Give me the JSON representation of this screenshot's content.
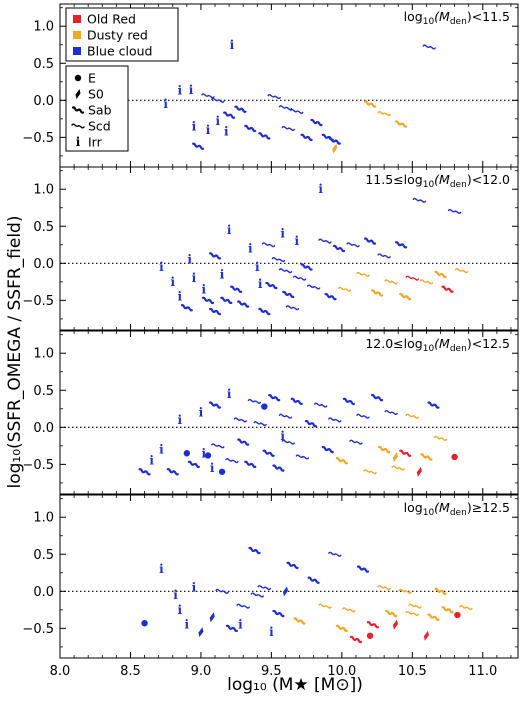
{
  "chart_data": {
    "type": "scatter",
    "xlabel": "log₁₀ (M★ [M⊙])",
    "ylabel": "log₁₀(SSFR_OMEGA / SSFR_field)",
    "xlim": [
      8.0,
      11.25
    ],
    "ylim": [
      -0.9,
      1.3
    ],
    "x_ticks": [
      "8.0",
      "8.5",
      "9.0",
      "9.5",
      "10.0",
      "10.5",
      "11.0"
    ],
    "x_tick_values": [
      8.0,
      8.5,
      9.0,
      9.5,
      10.0,
      10.5,
      11.0
    ],
    "y_ticks": [
      "−0.5",
      "0.0",
      "0.5",
      "1.0"
    ],
    "y_tick_values": [
      -0.5,
      0.0,
      0.5,
      1.0
    ],
    "reference_line": 0.0,
    "legend_colors": [
      {
        "label": "Old Red",
        "color": "#e8202a"
      },
      {
        "label": "Dusty red",
        "color": "#f5a623"
      },
      {
        "label": "Blue cloud",
        "color": "#1f2fcf"
      }
    ],
    "legend_morph": [
      {
        "label": "E",
        "code": "E"
      },
      {
        "label": "S0",
        "code": "S0"
      },
      {
        "label": "Sab",
        "code": "Sab"
      },
      {
        "label": "Scd",
        "code": "Scd"
      },
      {
        "label": "Irr",
        "code": "Irr"
      }
    ],
    "panels": [
      {
        "label_pre": "log",
        "label_sub": "10",
        "label_mid": "(M",
        "label_msub": "den",
        "label_post": ")<11.5",
        "points": [
          [
            8.85,
            0.13,
            "blue",
            "Irr"
          ],
          [
            8.93,
            0.14,
            "blue",
            "Irr"
          ],
          [
            8.75,
            -0.05,
            "blue",
            "Irr"
          ],
          [
            9.22,
            0.75,
            "blue",
            "Irr"
          ],
          [
            9.05,
            0.06,
            "blue",
            "Scd"
          ],
          [
            9.12,
            0.0,
            "blue",
            "Scd"
          ],
          [
            8.95,
            -0.35,
            "blue",
            "Irr"
          ],
          [
            9.05,
            -0.4,
            "blue",
            "Irr"
          ],
          [
            9.12,
            -0.28,
            "blue",
            "Irr"
          ],
          [
            9.18,
            -0.42,
            "blue",
            "Irr"
          ],
          [
            8.98,
            -0.62,
            "blue",
            "Sab"
          ],
          [
            9.2,
            -0.2,
            "blue",
            "Sab"
          ],
          [
            9.28,
            -0.12,
            "blue",
            "Sab"
          ],
          [
            9.35,
            -0.38,
            "blue",
            "Sab"
          ],
          [
            9.45,
            -0.48,
            "blue",
            "Sab"
          ],
          [
            9.52,
            0.05,
            "blue",
            "Scd"
          ],
          [
            9.6,
            -0.1,
            "blue",
            "Scd"
          ],
          [
            9.68,
            -0.15,
            "blue",
            "Scd"
          ],
          [
            9.62,
            -0.38,
            "blue",
            "Scd"
          ],
          [
            9.75,
            -0.5,
            "blue",
            "Sab"
          ],
          [
            9.82,
            -0.3,
            "blue",
            "Sab"
          ],
          [
            9.9,
            -0.5,
            "blue",
            "Sab"
          ],
          [
            9.95,
            -0.55,
            "blue",
            "Sab"
          ],
          [
            10.2,
            -0.05,
            "orange",
            "Sab"
          ],
          [
            10.3,
            -0.18,
            "orange",
            "Scd"
          ],
          [
            10.42,
            -0.32,
            "orange",
            "Sab"
          ],
          [
            9.95,
            -0.65,
            "orange",
            "S0"
          ],
          [
            10.62,
            0.72,
            "blue",
            "Scd"
          ]
        ]
      },
      {
        "label_pre": "11.5≤log",
        "label_sub": "10",
        "label_mid": "(M",
        "label_msub": "den",
        "label_post": ")<12.0",
        "points": [
          [
            8.72,
            -0.05,
            "blue",
            "Irr"
          ],
          [
            8.8,
            -0.25,
            "blue",
            "Irr"
          ],
          [
            8.85,
            -0.45,
            "blue",
            "Irr"
          ],
          [
            8.92,
            0.05,
            "blue",
            "Irr"
          ],
          [
            8.95,
            -0.2,
            "blue",
            "Irr"
          ],
          [
            9.02,
            -0.35,
            "blue",
            "Irr"
          ],
          [
            9.05,
            -0.5,
            "blue",
            "Sab"
          ],
          [
            9.1,
            0.1,
            "blue",
            "Sab"
          ],
          [
            9.15,
            -0.15,
            "blue",
            "Irr"
          ],
          [
            9.2,
            0.45,
            "blue",
            "Irr"
          ],
          [
            9.18,
            -0.5,
            "blue",
            "Sab"
          ],
          [
            9.25,
            -0.35,
            "blue",
            "Sab"
          ],
          [
            9.3,
            -0.55,
            "blue",
            "Sab"
          ],
          [
            9.35,
            0.2,
            "blue",
            "Irr"
          ],
          [
            9.4,
            -0.05,
            "blue",
            "Irr"
          ],
          [
            9.42,
            -0.28,
            "blue",
            "Irr"
          ],
          [
            9.48,
            0.25,
            "blue",
            "Scd"
          ],
          [
            9.5,
            -0.3,
            "blue",
            "Sab"
          ],
          [
            9.55,
            0.05,
            "blue",
            "Scd"
          ],
          [
            9.58,
            0.4,
            "blue",
            "Irr"
          ],
          [
            9.6,
            -0.1,
            "blue",
            "Scd"
          ],
          [
            9.62,
            -0.42,
            "blue",
            "Sab"
          ],
          [
            9.68,
            0.3,
            "blue",
            "Irr"
          ],
          [
            9.7,
            -0.2,
            "blue",
            "Scd"
          ],
          [
            9.75,
            -0.05,
            "blue",
            "Sab"
          ],
          [
            9.8,
            -0.32,
            "blue",
            "Scd"
          ],
          [
            9.85,
            1.0,
            "blue",
            "Irr"
          ],
          [
            9.88,
            0.3,
            "blue",
            "Scd"
          ],
          [
            9.92,
            -0.45,
            "blue",
            "Sab"
          ],
          [
            9.98,
            0.2,
            "blue",
            "Sab"
          ],
          [
            10.02,
            -0.35,
            "orange",
            "Scd"
          ],
          [
            10.08,
            0.25,
            "blue",
            "Scd"
          ],
          [
            10.15,
            -0.15,
            "orange",
            "Scd"
          ],
          [
            10.2,
            0.3,
            "blue",
            "Sab"
          ],
          [
            10.25,
            -0.4,
            "orange",
            "Sab"
          ],
          [
            10.3,
            0.1,
            "blue",
            "Scd"
          ],
          [
            10.35,
            -0.25,
            "orange",
            "Scd"
          ],
          [
            10.42,
            0.25,
            "blue",
            "Sab"
          ],
          [
            10.45,
            -0.45,
            "orange",
            "Sab"
          ],
          [
            10.5,
            -0.2,
            "red",
            "Scd"
          ],
          [
            10.55,
            0.85,
            "blue",
            "Scd"
          ],
          [
            10.6,
            -0.25,
            "orange",
            "Scd"
          ],
          [
            10.7,
            -0.15,
            "orange",
            "Sab"
          ],
          [
            10.75,
            -0.35,
            "red",
            "Sab"
          ],
          [
            10.8,
            0.7,
            "blue",
            "Scd"
          ],
          [
            10.85,
            -0.1,
            "orange",
            "Scd"
          ],
          [
            8.9,
            -0.6,
            "blue",
            "Sab"
          ],
          [
            9.1,
            -0.65,
            "blue",
            "Sab"
          ],
          [
            9.45,
            -0.65,
            "blue",
            "Sab"
          ],
          [
            9.65,
            -0.6,
            "blue",
            "Scd"
          ]
        ]
      },
      {
        "label_pre": "12.0≤log",
        "label_sub": "10",
        "label_mid": "(M",
        "label_msub": "den",
        "label_post": ")<12.5",
        "points": [
          [
            8.6,
            -0.6,
            "blue",
            "Sab"
          ],
          [
            8.65,
            -0.45,
            "blue",
            "Irr"
          ],
          [
            8.72,
            -0.3,
            "blue",
            "Irr"
          ],
          [
            8.8,
            -0.6,
            "blue",
            "Sab"
          ],
          [
            8.85,
            0.1,
            "blue",
            "Irr"
          ],
          [
            8.9,
            -0.35,
            "blue",
            "E"
          ],
          [
            8.95,
            -0.5,
            "blue",
            "Sab"
          ],
          [
            9.0,
            0.2,
            "blue",
            "Irr"
          ],
          [
            9.02,
            -0.35,
            "blue",
            "Irr"
          ],
          [
            9.05,
            -0.38,
            "blue",
            "E"
          ],
          [
            9.08,
            -0.55,
            "blue",
            "Irr"
          ],
          [
            9.1,
            0.3,
            "blue",
            "Sab"
          ],
          [
            9.12,
            -0.25,
            "blue",
            "Scd"
          ],
          [
            9.15,
            -0.6,
            "blue",
            "E"
          ],
          [
            9.2,
            0.45,
            "blue",
            "Irr"
          ],
          [
            9.22,
            -0.45,
            "blue",
            "Scd"
          ],
          [
            9.28,
            0.1,
            "blue",
            "Scd"
          ],
          [
            9.3,
            -0.2,
            "blue",
            "Sab"
          ],
          [
            9.35,
            -0.5,
            "blue",
            "Sab"
          ],
          [
            9.38,
            0.35,
            "blue",
            "Scd"
          ],
          [
            9.42,
            0.05,
            "blue",
            "Scd"
          ],
          [
            9.45,
            0.28,
            "blue",
            "E"
          ],
          [
            9.48,
            -0.35,
            "blue",
            "Sab"
          ],
          [
            9.52,
            0.4,
            "blue",
            "Sab"
          ],
          [
            9.55,
            -0.55,
            "blue",
            "Sab"
          ],
          [
            9.6,
            0.15,
            "blue",
            "Scd"
          ],
          [
            9.62,
            -0.2,
            "blue",
            "Scd"
          ],
          [
            9.68,
            0.35,
            "blue",
            "Sab"
          ],
          [
            9.72,
            -0.4,
            "blue",
            "Scd"
          ],
          [
            9.78,
            0.05,
            "blue",
            "Sab"
          ],
          [
            9.85,
            0.3,
            "blue",
            "Scd"
          ],
          [
            9.9,
            -0.3,
            "blue",
            "Sab"
          ],
          [
            9.95,
            0.1,
            "blue",
            "Scd"
          ],
          [
            10.0,
            -0.45,
            "orange",
            "Sab"
          ],
          [
            10.05,
            0.35,
            "blue",
            "Sab"
          ],
          [
            10.1,
            -0.2,
            "blue",
            "Scd"
          ],
          [
            10.15,
            0.15,
            "blue",
            "Scd"
          ],
          [
            10.2,
            -0.6,
            "orange",
            "Scd"
          ],
          [
            10.25,
            0.4,
            "blue",
            "Sab"
          ],
          [
            10.3,
            -0.3,
            "orange",
            "Sab"
          ],
          [
            10.35,
            0.2,
            "blue",
            "Scd"
          ],
          [
            10.4,
            -0.55,
            "orange",
            "Scd"
          ],
          [
            10.45,
            -0.35,
            "red",
            "Sab"
          ],
          [
            10.5,
            0.15,
            "orange",
            "Scd"
          ],
          [
            10.55,
            -0.6,
            "red",
            "S0"
          ],
          [
            10.6,
            -0.4,
            "orange",
            "Sab"
          ],
          [
            10.65,
            0.3,
            "blue",
            "Sab"
          ],
          [
            10.7,
            -0.15,
            "orange",
            "Scd"
          ],
          [
            10.8,
            -0.4,
            "red",
            "E"
          ],
          [
            10.38,
            -0.4,
            "orange",
            "S0"
          ],
          [
            9.58,
            -0.12,
            "blue",
            "Irr"
          ]
        ]
      },
      {
        "label_pre": "log",
        "label_sub": "10",
        "label_mid": "(M",
        "label_msub": "den",
        "label_post": ")≥12.5",
        "points": [
          [
            8.6,
            -0.43,
            "blue",
            "E"
          ],
          [
            8.72,
            0.3,
            "blue",
            "Irr"
          ],
          [
            8.82,
            -0.05,
            "blue",
            "Irr"
          ],
          [
            8.85,
            -0.25,
            "blue",
            "Irr"
          ],
          [
            8.9,
            -0.45,
            "blue",
            "Irr"
          ],
          [
            8.95,
            0.05,
            "blue",
            "Irr"
          ],
          [
            9.0,
            -0.55,
            "blue",
            "S0"
          ],
          [
            9.08,
            -0.35,
            "blue",
            "S0"
          ],
          [
            9.15,
            0.0,
            "blue",
            "Scd"
          ],
          [
            9.22,
            -0.5,
            "blue",
            "Sab"
          ],
          [
            9.3,
            -0.2,
            "blue",
            "Scd"
          ],
          [
            9.38,
            0.55,
            "blue",
            "Sab"
          ],
          [
            9.4,
            -0.05,
            "blue",
            "Scd"
          ],
          [
            9.45,
            0.05,
            "blue",
            "Scd"
          ],
          [
            9.5,
            -0.55,
            "blue",
            "Irr"
          ],
          [
            9.55,
            -0.3,
            "blue",
            "Sab"
          ],
          [
            9.6,
            0.0,
            "blue",
            "S0"
          ],
          [
            9.65,
            0.35,
            "blue",
            "Sab"
          ],
          [
            9.7,
            -0.4,
            "orange",
            "Sab"
          ],
          [
            9.8,
            0.15,
            "blue",
            "Sab"
          ],
          [
            9.88,
            -0.2,
            "orange",
            "Scd"
          ],
          [
            9.95,
            0.5,
            "blue",
            "Scd"
          ],
          [
            10.0,
            -0.5,
            "orange",
            "Sab"
          ],
          [
            10.05,
            -0.25,
            "orange",
            "Scd"
          ],
          [
            10.1,
            -0.65,
            "red",
            "Sab"
          ],
          [
            10.15,
            0.3,
            "blue",
            "Sab"
          ],
          [
            10.2,
            -0.6,
            "red",
            "E"
          ],
          [
            10.22,
            -0.45,
            "red",
            "Sab"
          ],
          [
            10.3,
            0.05,
            "orange",
            "Scd"
          ],
          [
            10.35,
            -0.3,
            "orange",
            "Sab"
          ],
          [
            10.38,
            -0.45,
            "red",
            "S0"
          ],
          [
            10.45,
            0.0,
            "orange",
            "Scd"
          ],
          [
            10.52,
            -0.2,
            "orange",
            "Scd"
          ],
          [
            10.6,
            -0.6,
            "red",
            "S0"
          ],
          [
            10.65,
            -0.35,
            "orange",
            "Sab"
          ],
          [
            10.7,
            0.0,
            "orange",
            "Sab"
          ],
          [
            10.75,
            -0.25,
            "orange",
            "Sab"
          ],
          [
            10.82,
            -0.32,
            "red",
            "E"
          ],
          [
            10.88,
            -0.22,
            "orange",
            "Scd"
          ],
          [
            10.5,
            -0.3,
            "orange",
            "Scd"
          ],
          [
            9.28,
            -0.45,
            "blue",
            "Irr"
          ]
        ]
      }
    ]
  }
}
